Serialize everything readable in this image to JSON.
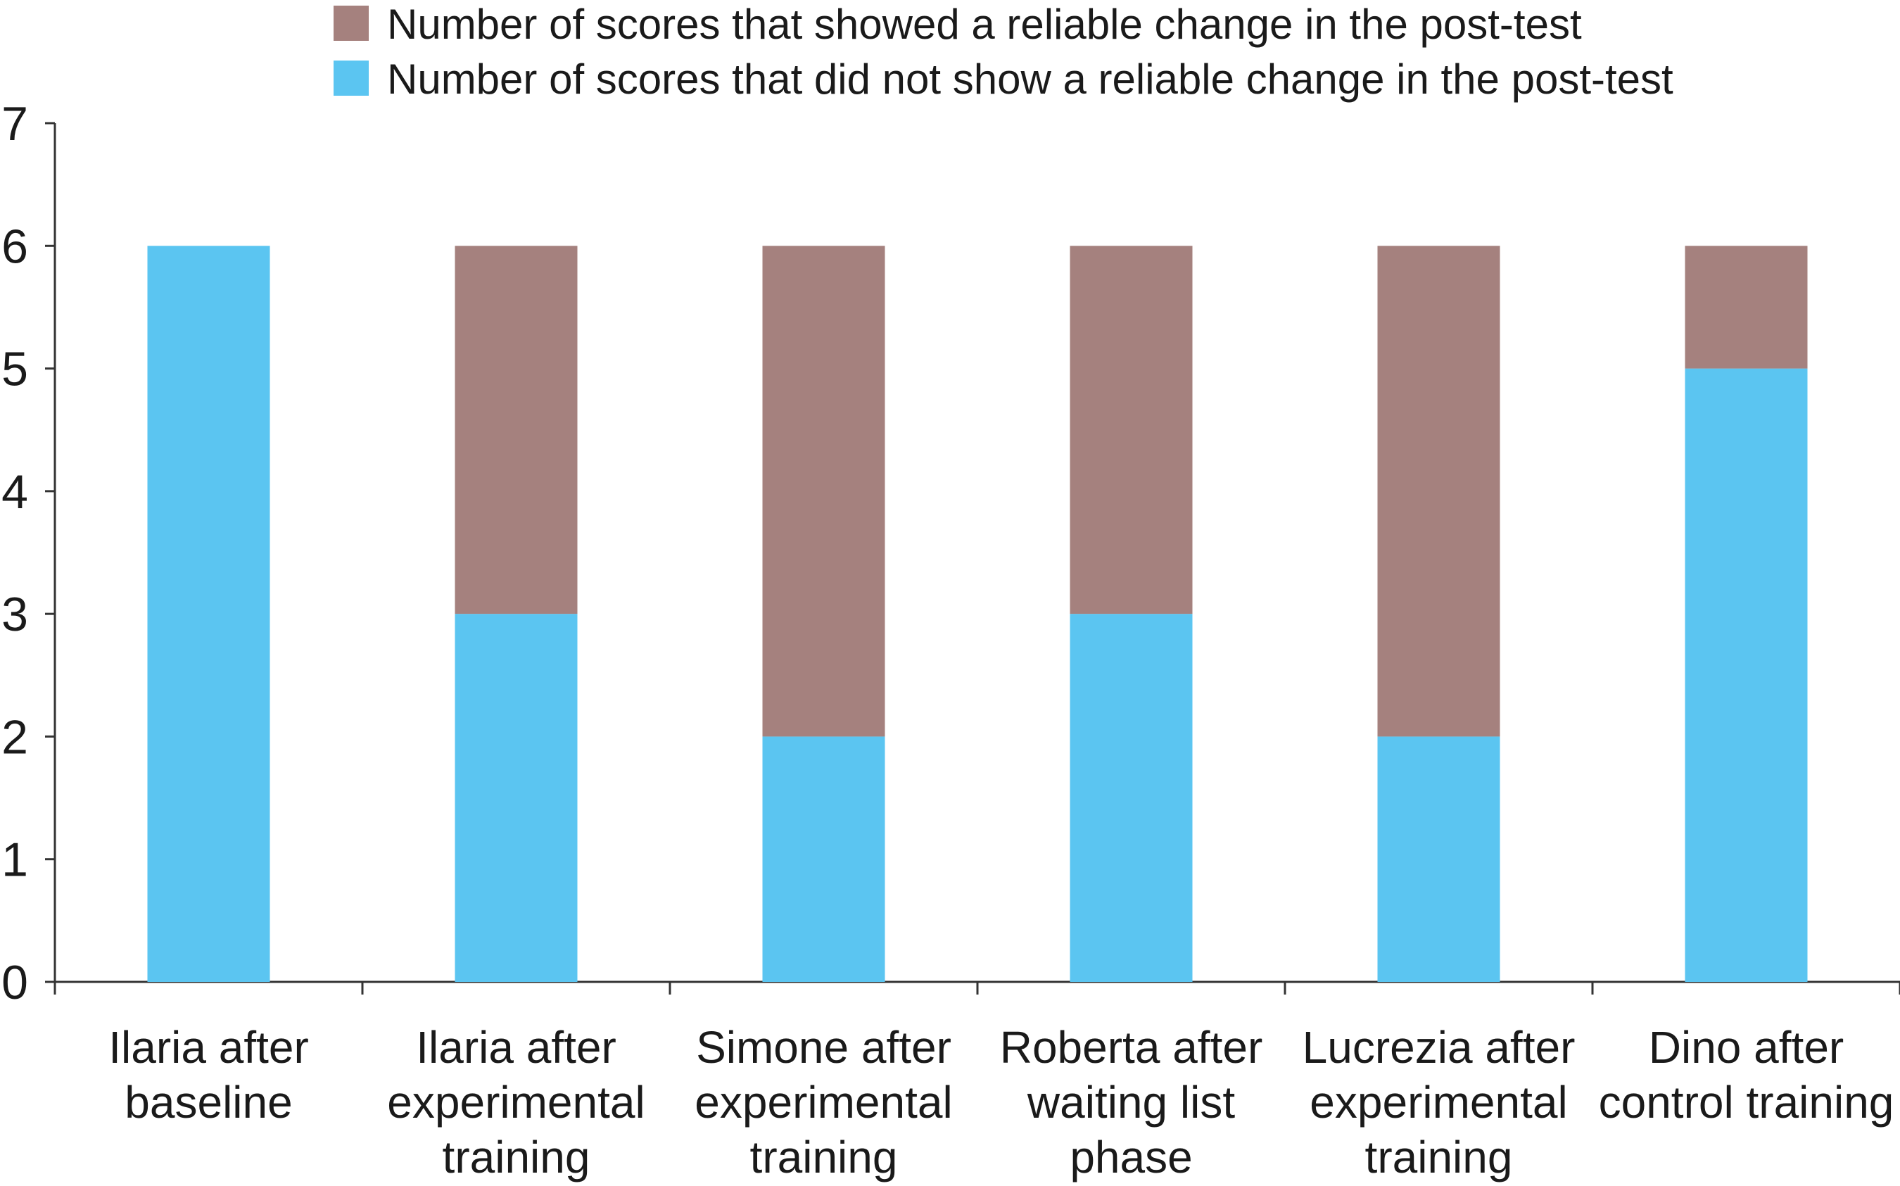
{
  "chart_data": {
    "type": "bar",
    "stacked": true,
    "categories": [
      [
        "Ilaria after",
        "baseline"
      ],
      [
        "Ilaria after",
        "experimental",
        "training"
      ],
      [
        "Simone after",
        "experimental",
        "training"
      ],
      [
        "Roberta after",
        "waiting list",
        "phase"
      ],
      [
        "Lucrezia after",
        "experimental",
        "training"
      ],
      [
        "Dino after",
        "control training"
      ]
    ],
    "series": [
      {
        "name": "Number of scores that did not show a reliable change in the post-test",
        "color": "#5bc5f1",
        "values": [
          6,
          3,
          2,
          3,
          2,
          5
        ]
      },
      {
        "name": "Number of scores that showed a reliable change in the post-test",
        "color": "#a5817e",
        "values": [
          0,
          3,
          4,
          3,
          4,
          1
        ]
      }
    ],
    "legend_order": [
      1,
      0
    ],
    "legend_position": "top",
    "ylim": [
      0,
      7
    ],
    "yticks": [
      "0",
      "1",
      "2",
      "3",
      "4",
      "5",
      "6",
      "7"
    ],
    "grid": false,
    "xlabel": "",
    "ylabel": "",
    "title": ""
  }
}
